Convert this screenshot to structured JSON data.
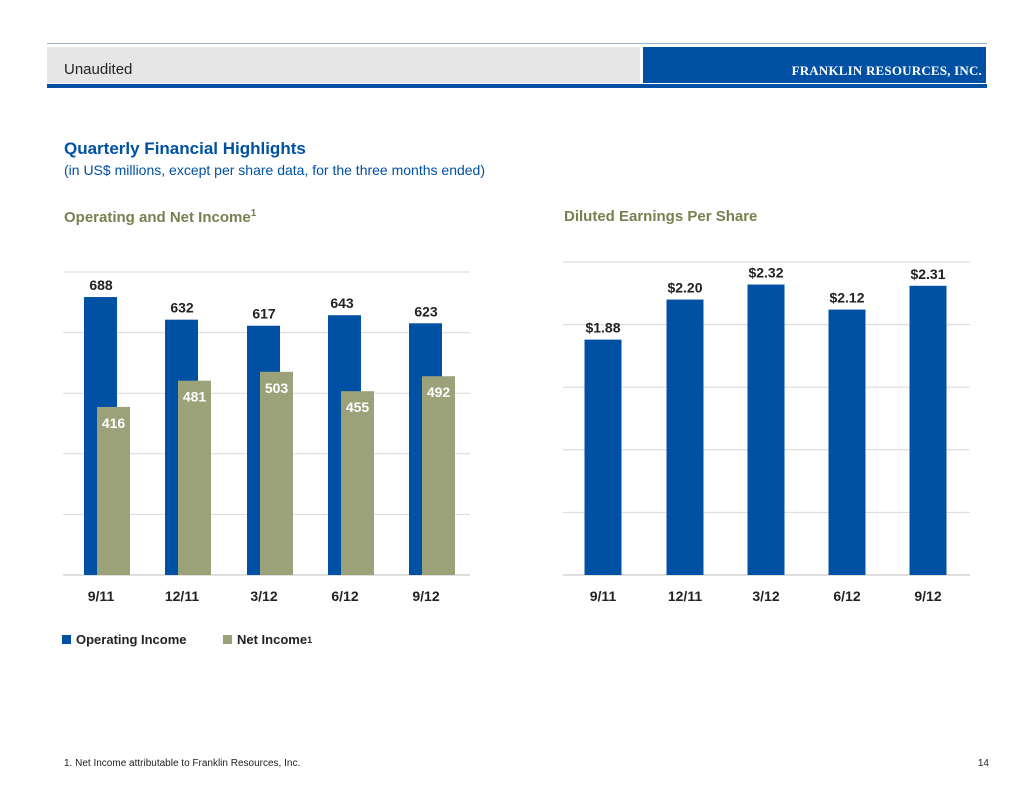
{
  "header": {
    "status_label": "Unaudited",
    "company_name": "FRANKLIN RESOURCES, INC."
  },
  "page": {
    "title": "Quarterly Financial Highlights",
    "subtitle": "(in US$ millions, except per share data, for the three months ended)",
    "footnote": "1.  Net Income attributable to Franklin Resources, Inc.",
    "page_number": "14"
  },
  "colors": {
    "operating": "#0050a4",
    "net": "#9ba178",
    "grid": "#d9d9d9",
    "chart_title": "#7a7f4f"
  },
  "chart_data": [
    {
      "type": "bar",
      "title": "Operating and Net Income",
      "title_sup": "1",
      "categories": [
        "9/11",
        "12/11",
        "3/12",
        "6/12",
        "9/12"
      ],
      "series": [
        {
          "name": "Operating Income",
          "name_sup": "",
          "values": [
            688,
            632,
            617,
            643,
            623
          ]
        },
        {
          "name": "Net Income",
          "name_sup": "1",
          "values": [
            416,
            481,
            503,
            455,
            492
          ]
        }
      ],
      "ylim": [
        0,
        750
      ],
      "grid": true,
      "legend": "bottom-left",
      "labels": {
        "operating": [
          "688",
          "632",
          "617",
          "643",
          "623"
        ],
        "net": [
          "416",
          "481",
          "503",
          "455",
          "492"
        ]
      }
    },
    {
      "type": "bar",
      "title": "Diluted Earnings Per Share",
      "categories": [
        "9/11",
        "12/11",
        "3/12",
        "6/12",
        "9/12"
      ],
      "series": [
        {
          "name": "Diluted EPS",
          "values": [
            1.88,
            2.2,
            2.32,
            2.12,
            2.31
          ]
        }
      ],
      "ylim": [
        0,
        2.5
      ],
      "grid": true,
      "labels": [
        "$1.88",
        "$2.20",
        "$2.32",
        "$2.12",
        "$2.31"
      ]
    }
  ]
}
